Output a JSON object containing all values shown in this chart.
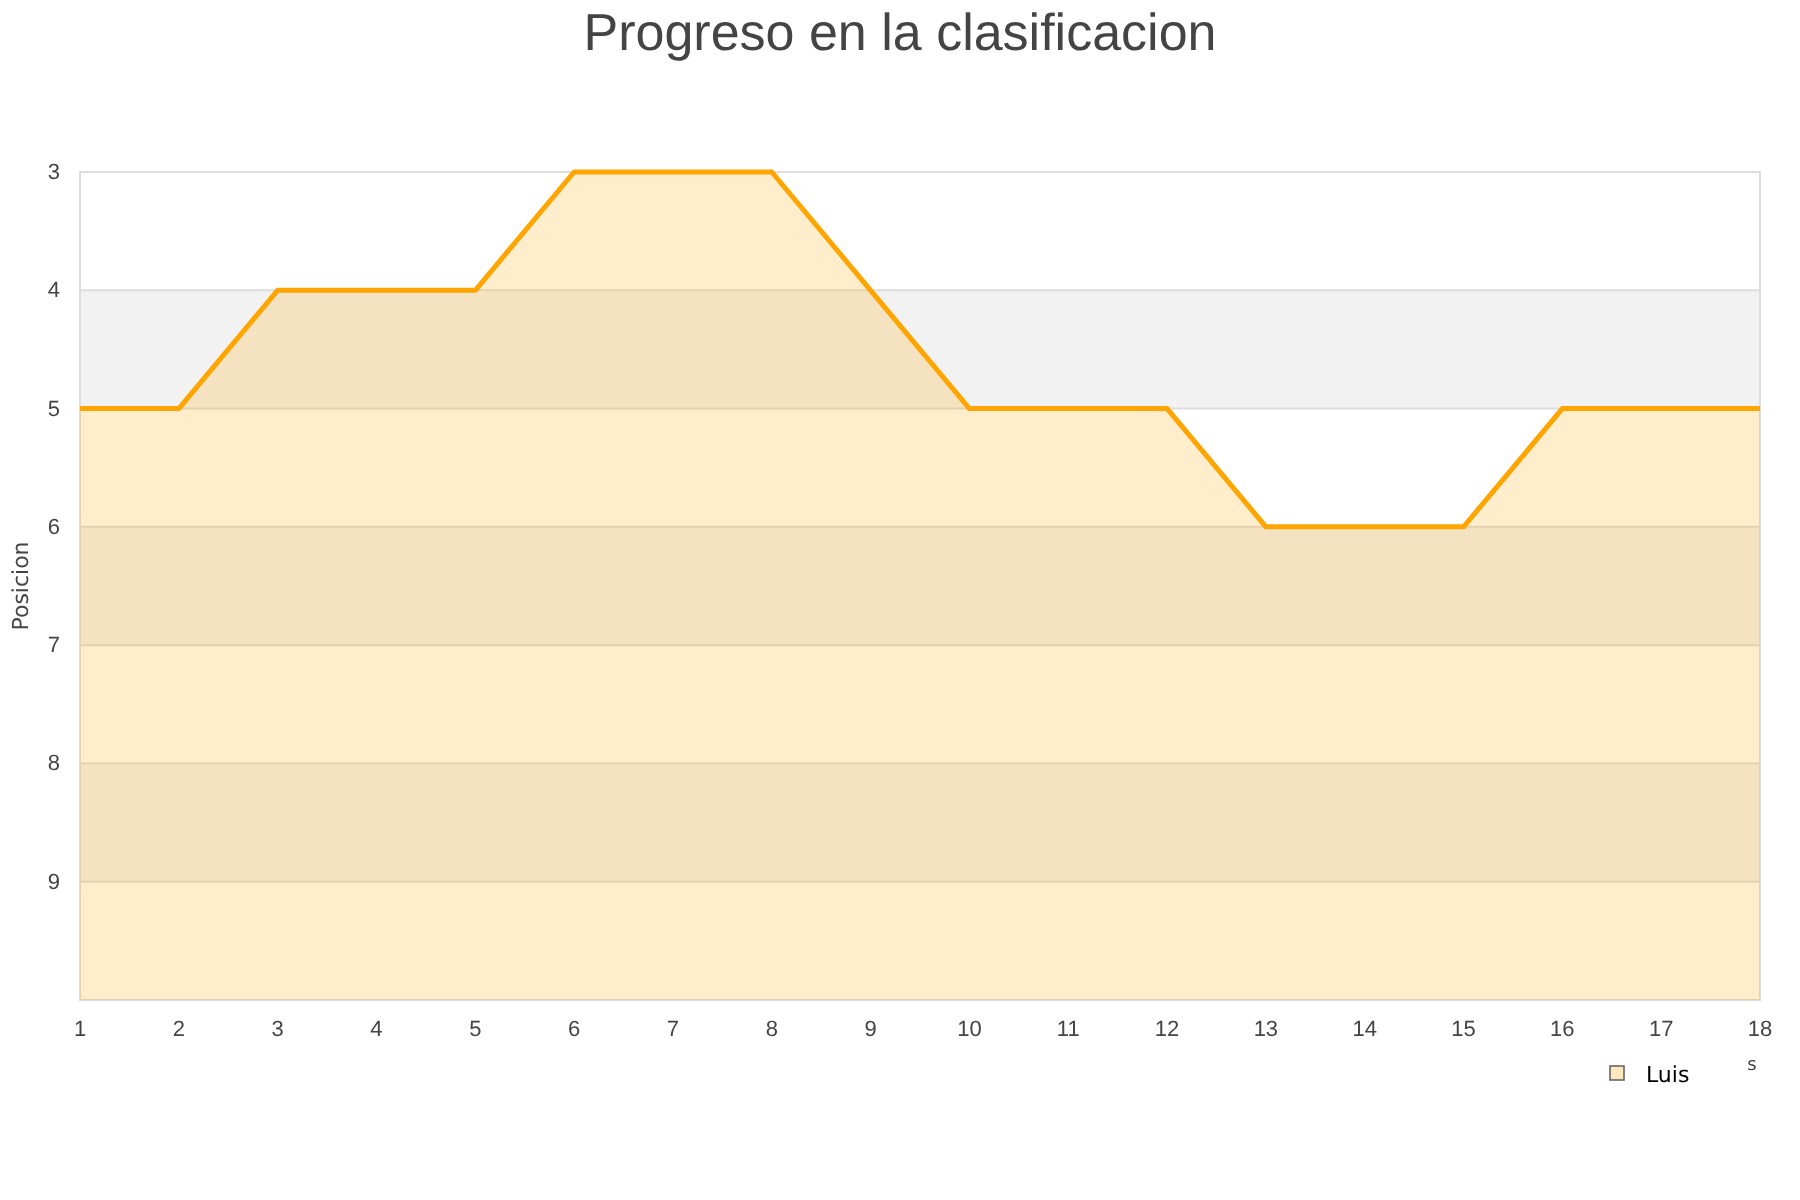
{
  "chart_data": {
    "type": "line",
    "title": "Progreso en la clasificacion",
    "ylabel": "Posicion",
    "xlabel": "s",
    "x": [
      1,
      2,
      3,
      4,
      5,
      6,
      7,
      8,
      9,
      10,
      11,
      12,
      13,
      14,
      15,
      16,
      17,
      18
    ],
    "series": [
      {
        "name": "Luis",
        "color": "#ffa500",
        "values": [
          5,
          5,
          4,
          4,
          4,
          3,
          3,
          3,
          4,
          5,
          5,
          5,
          6,
          6,
          6,
          5,
          5,
          5
        ],
        "lower": [
          10,
          10,
          10,
          10,
          10,
          10,
          10,
          10,
          10,
          10,
          10,
          10,
          10,
          10,
          10,
          10,
          10,
          10
        ],
        "upper": [
          5,
          5,
          4,
          4,
          4,
          3,
          3,
          3,
          4,
          5,
          5,
          5,
          6,
          6,
          6,
          5,
          5,
          5
        ]
      }
    ],
    "xlim": [
      1,
      18
    ],
    "xticks": [
      1,
      2,
      3,
      4,
      5,
      6,
      7,
      8,
      9,
      10,
      11,
      12,
      13,
      14,
      15,
      16,
      17,
      18
    ],
    "ylim": [
      10,
      3
    ],
    "yticks": [
      3,
      4,
      5,
      6,
      7,
      8,
      9,
      {
        "value": 10,
        "label": null
      }
    ],
    "bands": [
      {
        "axis": "y",
        "from": 4,
        "to": 5,
        "color": "#f2f2f2"
      },
      {
        "axis": "y",
        "from": 6,
        "to": 7,
        "color": "#f2f2f2"
      },
      {
        "axis": "y",
        "from": 8,
        "to": 9,
        "color": "#f2f2f2"
      }
    ],
    "grid": "y",
    "legend": "bottom right"
  }
}
